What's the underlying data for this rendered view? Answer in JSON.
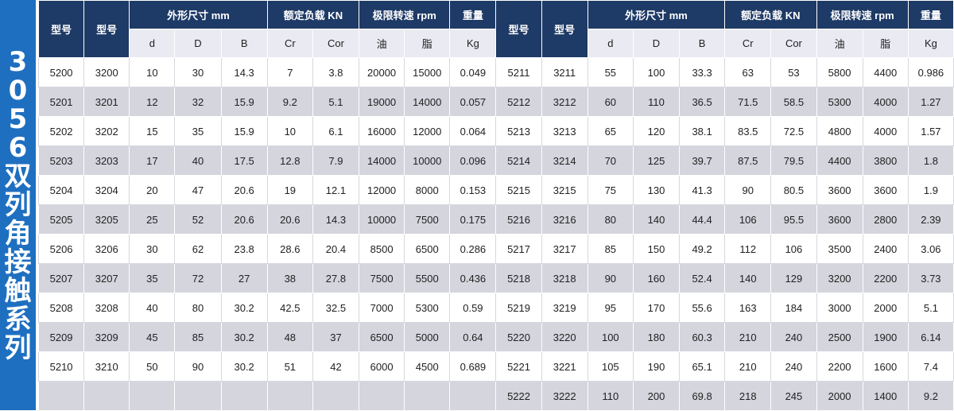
{
  "side_label": [
    "3",
    "0",
    "5",
    "6",
    "双",
    "列",
    "角",
    "接",
    "触",
    "系",
    "列"
  ],
  "headers": {
    "model1": "型号",
    "model2": "型号",
    "dims": "外形尺寸 mm",
    "load": "额定负载 KN",
    "speed": "极限转速 rpm",
    "weight": "重量",
    "sub": [
      "d",
      "D",
      "B",
      "Cr",
      "Cor",
      "油",
      "脂",
      "Kg"
    ]
  },
  "rows": [
    [
      "5200",
      "3200",
      "10",
      "30",
      "14.3",
      "7",
      "3.8",
      "20000",
      "15000",
      "0.049",
      "5211",
      "3211",
      "55",
      "100",
      "33.3",
      "63",
      "53",
      "5800",
      "4400",
      "0.986"
    ],
    [
      "5201",
      "3201",
      "12",
      "32",
      "15.9",
      "9.2",
      "5.1",
      "19000",
      "14000",
      "0.057",
      "5212",
      "3212",
      "60",
      "110",
      "36.5",
      "71.5",
      "58.5",
      "5300",
      "4000",
      "1.27"
    ],
    [
      "5202",
      "3202",
      "15",
      "35",
      "15.9",
      "10",
      "6.1",
      "16000",
      "12000",
      "0.064",
      "5213",
      "3213",
      "65",
      "120",
      "38.1",
      "83.5",
      "72.5",
      "4800",
      "4000",
      "1.57"
    ],
    [
      "5203",
      "3203",
      "17",
      "40",
      "17.5",
      "12.8",
      "7.9",
      "14000",
      "10000",
      "0.096",
      "5214",
      "3214",
      "70",
      "125",
      "39.7",
      "87.5",
      "79.5",
      "4400",
      "3800",
      "1.8"
    ],
    [
      "5204",
      "3204",
      "20",
      "47",
      "20.6",
      "19",
      "12.1",
      "12000",
      "8000",
      "0.153",
      "5215",
      "3215",
      "75",
      "130",
      "41.3",
      "90",
      "80.5",
      "3600",
      "3600",
      "1.9"
    ],
    [
      "5205",
      "3205",
      "25",
      "52",
      "20.6",
      "20.6",
      "14.3",
      "10000",
      "7500",
      "0.175",
      "5216",
      "3216",
      "80",
      "140",
      "44.4",
      "106",
      "95.5",
      "3600",
      "2800",
      "2.39"
    ],
    [
      "5206",
      "3206",
      "30",
      "62",
      "23.8",
      "28.6",
      "20.4",
      "8500",
      "6500",
      "0.286",
      "5217",
      "3217",
      "85",
      "150",
      "49.2",
      "112",
      "106",
      "3500",
      "2400",
      "3.06"
    ],
    [
      "5207",
      "3207",
      "35",
      "72",
      "27",
      "38",
      "27.8",
      "7500",
      "5500",
      "0.436",
      "5218",
      "3218",
      "90",
      "160",
      "52.4",
      "140",
      "129",
      "3200",
      "2200",
      "3.73"
    ],
    [
      "5208",
      "3208",
      "40",
      "80",
      "30.2",
      "42.5",
      "32.5",
      "7000",
      "5300",
      "0.59",
      "5219",
      "3219",
      "95",
      "170",
      "55.6",
      "163",
      "184",
      "3000",
      "2000",
      "5.1"
    ],
    [
      "5209",
      "3209",
      "45",
      "85",
      "30.2",
      "48",
      "37",
      "6500",
      "5000",
      "0.64",
      "5220",
      "3220",
      "100",
      "180",
      "60.3",
      "210",
      "240",
      "2500",
      "1900",
      "6.14"
    ],
    [
      "5210",
      "3210",
      "50",
      "90",
      "30.2",
      "51",
      "42",
      "6000",
      "4500",
      "0.689",
      "5221",
      "3221",
      "105",
      "190",
      "65.1",
      "210",
      "240",
      "2200",
      "1600",
      "7.4"
    ],
    [
      "",
      "",
      "",
      "",
      "",
      "",
      "",
      "",
      "",
      "",
      "5222",
      "3222",
      "110",
      "200",
      "69.8",
      "218",
      "245",
      "2000",
      "1400",
      "9.2"
    ]
  ]
}
